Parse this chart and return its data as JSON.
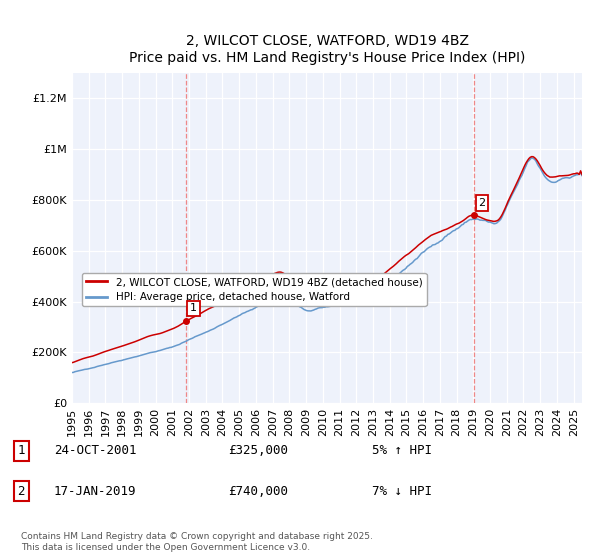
{
  "title": "2, WILCOT CLOSE, WATFORD, WD19 4BZ",
  "subtitle": "Price paid vs. HM Land Registry's House Price Index (HPI)",
  "ylim": [
    0,
    1300000
  ],
  "yticks": [
    0,
    200000,
    400000,
    600000,
    800000,
    1000000,
    1200000
  ],
  "xlim_start": 1995.0,
  "xlim_end": 2025.5,
  "xticks": [
    1995,
    1996,
    1997,
    1998,
    1999,
    2000,
    2001,
    2002,
    2003,
    2004,
    2005,
    2006,
    2007,
    2008,
    2009,
    2010,
    2011,
    2012,
    2013,
    2014,
    2015,
    2016,
    2017,
    2018,
    2019,
    2020,
    2021,
    2022,
    2023,
    2024,
    2025
  ],
  "sale1_x": 2001.82,
  "sale1_y": 325000,
  "sale1_label": "1",
  "sale2_x": 2019.05,
  "sale2_y": 740000,
  "sale2_label": "2",
  "line_color_property": "#cc0000",
  "line_color_hpi": "#6699cc",
  "vline_color": "#ee8888",
  "background_color": "#eef2fb",
  "grid_color": "#ffffff",
  "legend_label_property": "2, WILCOT CLOSE, WATFORD, WD19 4BZ (detached house)",
  "legend_label_hpi": "HPI: Average price, detached house, Watford",
  "annotation1_date": "24-OCT-2001",
  "annotation1_price": "£325,000",
  "annotation1_pct": "5% ↑ HPI",
  "annotation2_date": "17-JAN-2019",
  "annotation2_price": "£740,000",
  "annotation2_pct": "7% ↓ HPI",
  "footer": "Contains HM Land Registry data © Crown copyright and database right 2025.\nThis data is licensed under the Open Government Licence v3.0."
}
